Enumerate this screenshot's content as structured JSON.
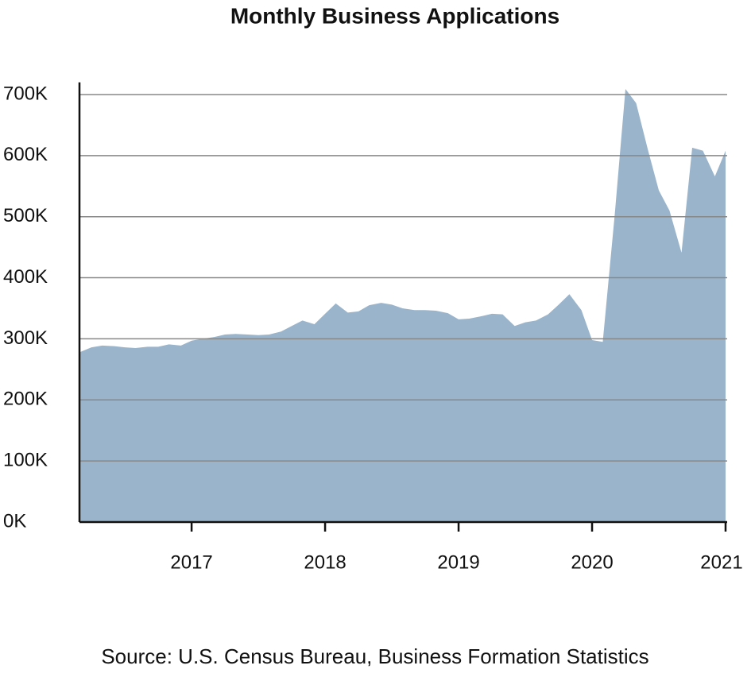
{
  "chart_data": {
    "type": "area",
    "title": "Monthly Business Applications",
    "source": "Source: U.S. Census Bureau, Business Formation Statistics",
    "x": [
      2016.16,
      2016.25,
      2016.33,
      2016.42,
      2016.5,
      2016.58,
      2016.67,
      2016.75,
      2016.83,
      2016.92,
      2017.0,
      2017.08,
      2017.17,
      2017.25,
      2017.33,
      2017.42,
      2017.5,
      2017.58,
      2017.67,
      2017.75,
      2017.83,
      2017.92,
      2018.0,
      2018.08,
      2018.17,
      2018.25,
      2018.33,
      2018.42,
      2018.5,
      2018.58,
      2018.67,
      2018.75,
      2018.83,
      2018.92,
      2019.0,
      2019.08,
      2019.17,
      2019.25,
      2019.33,
      2019.42,
      2019.5,
      2019.58,
      2019.67,
      2019.75,
      2019.83,
      2019.92,
      2020.0,
      2020.08,
      2020.17,
      2020.25,
      2020.33,
      2020.42,
      2020.5,
      2020.58,
      2020.67,
      2020.75,
      2020.83,
      2020.92,
      2021.0
    ],
    "values": [
      278000,
      286000,
      289000,
      288000,
      286000,
      285000,
      287000,
      287000,
      291000,
      289000,
      297000,
      300000,
      303000,
      307000,
      308000,
      307000,
      306000,
      307000,
      312000,
      321000,
      330000,
      324000,
      341000,
      358000,
      343000,
      345000,
      355000,
      359000,
      356000,
      350000,
      347000,
      347000,
      346000,
      342000,
      332000,
      333000,
      337000,
      341000,
      340000,
      321000,
      327000,
      330000,
      340000,
      356000,
      373000,
      347000,
      298000,
      295000,
      504000,
      709000,
      686000,
      608000,
      543000,
      510000,
      441000,
      613000,
      608000,
      566000,
      608000
    ],
    "color": "#9ab4cb",
    "xlim": [
      2016.16,
      2021.0
    ],
    "xticks": [
      2017,
      2018,
      2019,
      2020,
      2021
    ],
    "ylim": [
      0,
      720000
    ],
    "yticks": [
      {
        "value": 0,
        "label": "0K"
      },
      {
        "value": 100000,
        "label": "100K"
      },
      {
        "value": 200000,
        "label": "200K"
      },
      {
        "value": 300000,
        "label": "300K"
      },
      {
        "value": 400000,
        "label": "400K"
      },
      {
        "value": 500000,
        "label": "500K"
      },
      {
        "value": 600000,
        "label": "600K"
      },
      {
        "value": 700000,
        "label": "700K"
      }
    ],
    "grid": true
  }
}
